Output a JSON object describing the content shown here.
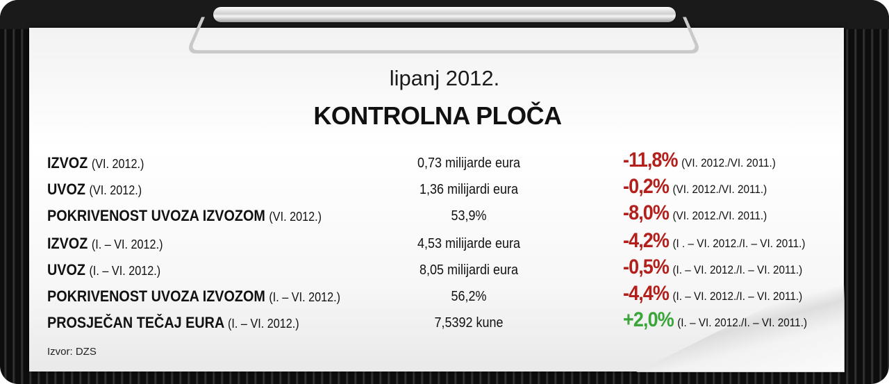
{
  "header": {
    "date": "lipanj 2012.",
    "title": "KONTROLNA PLOČA"
  },
  "rows": [
    {
      "label": "IZVOZ",
      "period": "(VI. 2012.)",
      "value": "0,73 milijarde eura",
      "change": "-11,8%",
      "comparison": "(VI. 2012./VI. 2011.)",
      "direction": "negative"
    },
    {
      "label": "UVOZ",
      "period": "(VI. 2012.)",
      "value": "1,36 milijardi eura",
      "change": "-0,2%",
      "comparison": "(VI. 2012./VI. 2011.)",
      "direction": "negative"
    },
    {
      "label": "POKRIVENOST UVOZA IZVOZOM",
      "period": "(VI. 2012.)",
      "value": "53,9%",
      "change": "-8,0%",
      "comparison": "(VI. 2012./VI. 2011.)",
      "direction": "negative"
    },
    {
      "label": "IZVOZ",
      "period": "(I. – VI. 2012.)",
      "value": "4,53 milijarde eura",
      "change": "-4,2%",
      "comparison": "(I . – VI. 2012./I. – VI. 2011.)",
      "direction": "negative"
    },
    {
      "label": "UVOZ",
      "period": "(I. – VI. 2012.)",
      "value": "8,05 milijardi eura",
      "change": "-0,5%",
      "comparison": "(I. – VI. 2012./I. – VI. 2011.)",
      "direction": "negative"
    },
    {
      "label": "POKRIVENOST UVOZA IZVOZOM",
      "period": "(I. – VI. 2012.)",
      "value": "56,2%",
      "change": "-4,4%",
      "comparison": "(I. – VI. 2012./I. – VI. 2011.)",
      "direction": "negative"
    },
    {
      "label": "PROSJEČAN TEČAJ EURA",
      "period": "(I. – VI. 2012.)",
      "value": "7,5392 kune",
      "change": "+2,0%",
      "comparison": "(I. – VI. 2012./I. – VI. 2011.)",
      "direction": "positive"
    }
  ],
  "footer": {
    "source": "Izvor: DZS"
  },
  "colors": {
    "negative": "#b3201c",
    "positive": "#3aa53a",
    "frame": "#0d0d0d"
  }
}
